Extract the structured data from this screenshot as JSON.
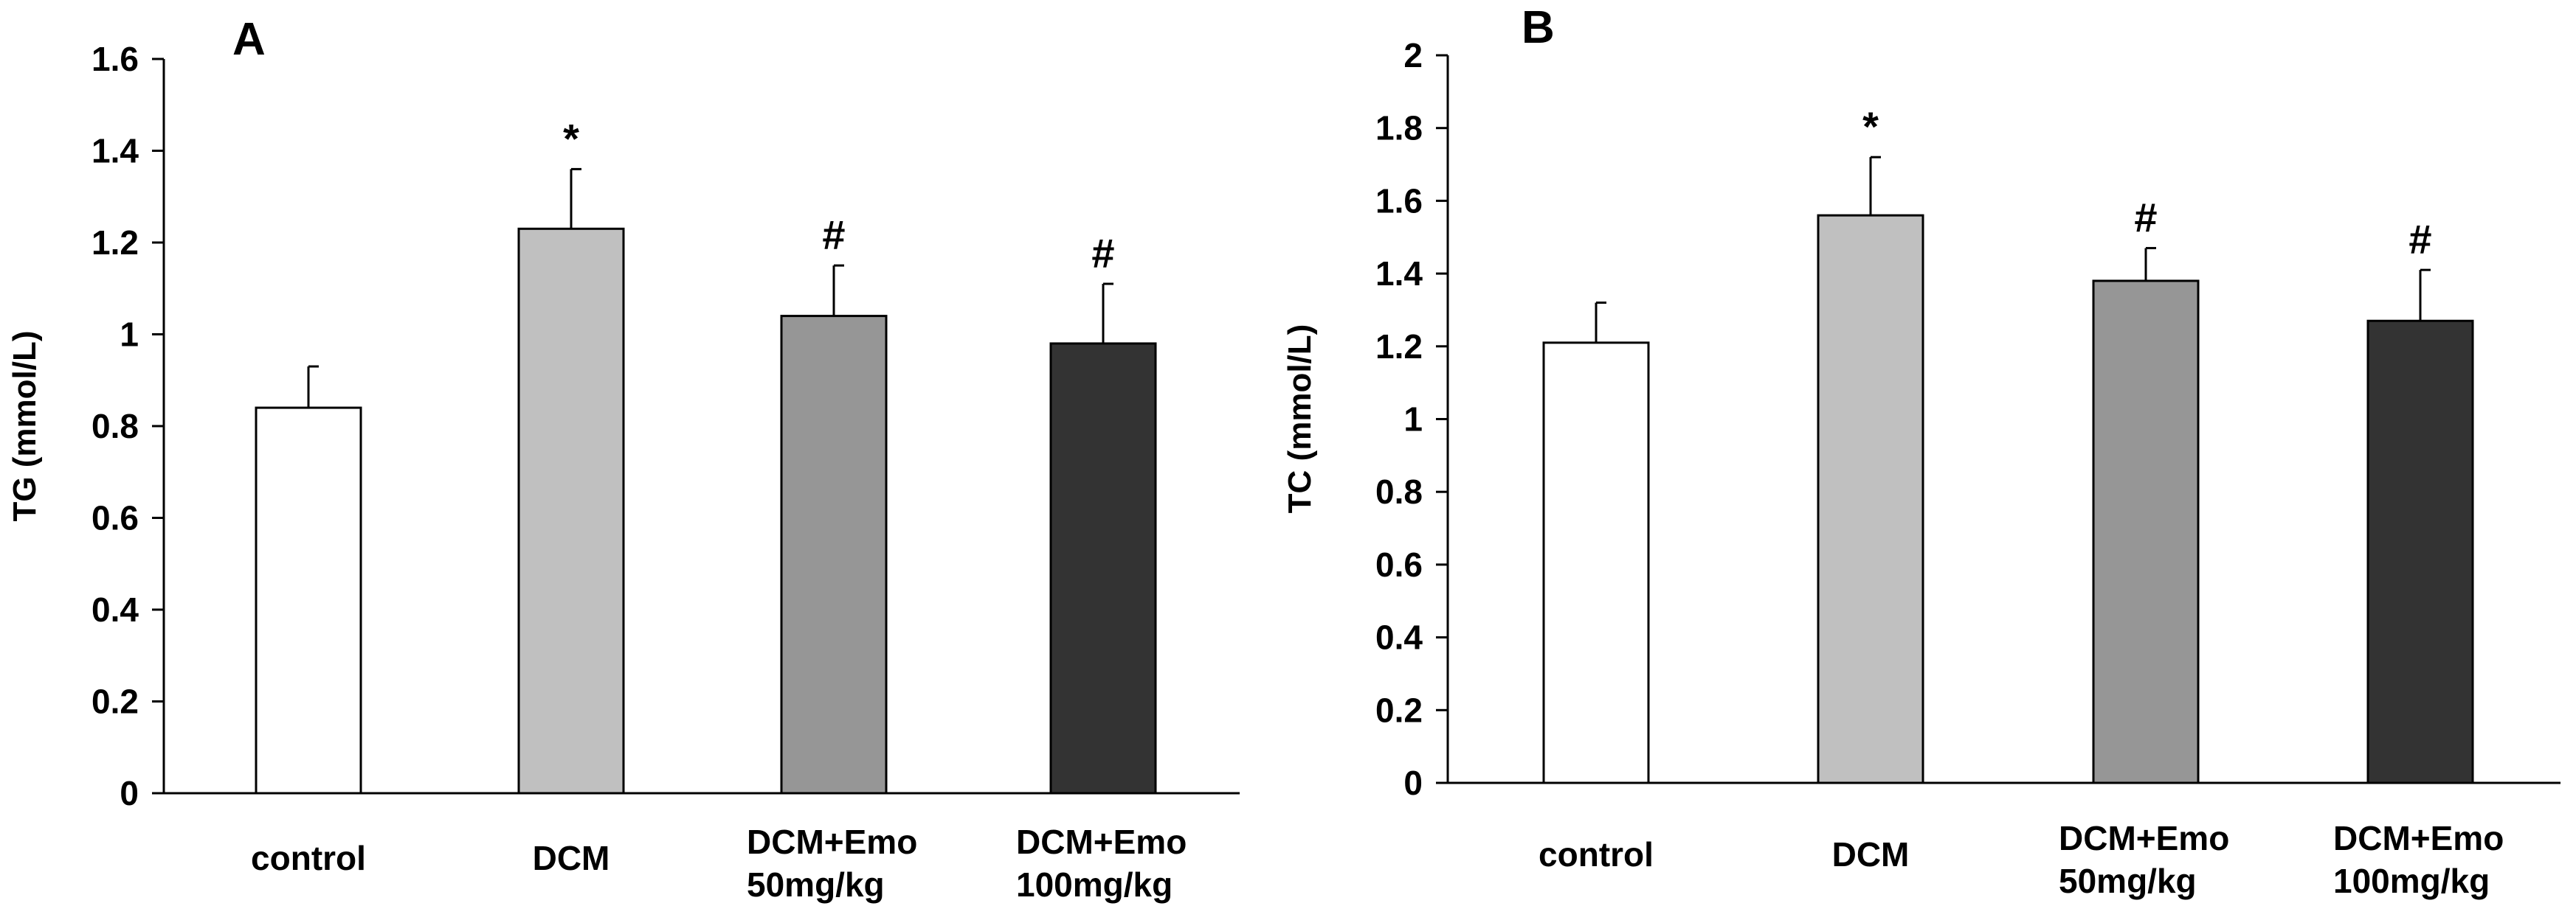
{
  "chart_data": [
    {
      "type": "bar",
      "panel_label": "A",
      "title": "",
      "xlabel": "",
      "ylabel": "TG (mmol/L)",
      "ylim": [
        0,
        1.6
      ],
      "yticks": [
        0,
        0.2,
        0.4,
        0.6,
        0.8,
        1,
        1.2,
        1.4,
        1.6
      ],
      "ytick_labels": [
        "0",
        "0.2",
        "0.4",
        "0.6",
        "0.8",
        "1",
        "1.2",
        "1.4",
        "1.6"
      ],
      "grid": false,
      "categories": [
        [
          "control"
        ],
        [
          "DCM"
        ],
        [
          "DCM+Emo",
          "50mg/kg"
        ],
        [
          "DCM+Emo",
          "100mg/kg"
        ]
      ],
      "values": [
        0.84,
        1.23,
        1.04,
        0.98
      ],
      "errors": [
        0.09,
        0.13,
        0.11,
        0.13
      ],
      "significance": [
        "",
        "*",
        "#",
        "#"
      ],
      "colors": [
        "#ffffff",
        "#c0c0c0",
        "#969696",
        "#333333"
      ]
    },
    {
      "type": "bar",
      "panel_label": "B",
      "title": "",
      "xlabel": "",
      "ylabel": "TC (mmol/L)",
      "ylim": [
        0,
        2
      ],
      "yticks": [
        0,
        0.2,
        0.4,
        0.6,
        0.8,
        1,
        1.2,
        1.4,
        1.6,
        1.8,
        2
      ],
      "ytick_labels": [
        "0",
        "0.2",
        "0.4",
        "0.6",
        "0.8",
        "1",
        "1.2",
        "1.4",
        "1.6",
        "1.8",
        "2"
      ],
      "grid": false,
      "categories": [
        [
          "control"
        ],
        [
          "DCM"
        ],
        [
          "DCM+Emo",
          "50mg/kg"
        ],
        [
          "DCM+Emo",
          "100mg/kg"
        ]
      ],
      "values": [
        1.21,
        1.56,
        1.38,
        1.27
      ],
      "errors": [
        0.11,
        0.16,
        0.09,
        0.14
      ],
      "significance": [
        "",
        "*",
        "#",
        "#"
      ],
      "colors": [
        "#ffffff",
        "#c0c0c0",
        "#969696",
        "#333333"
      ]
    }
  ]
}
